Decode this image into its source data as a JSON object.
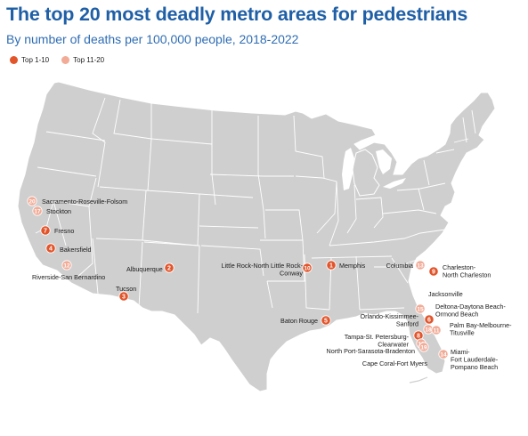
{
  "title": "The top 20 most deadly metro areas for pedestrians",
  "subtitle": "By number of deaths per 100,000 people, 2018-2022",
  "legend": {
    "top10_label": "Top 1-10",
    "top20_label": "Top 11-20"
  },
  "colors": {
    "title": "#1f5fa6",
    "land": "#cfcfcf",
    "border": "#ffffff",
    "top10": "#e2552b",
    "top20": "#f2ab97"
  },
  "metros": [
    {
      "rank": "20",
      "tier": "top20",
      "label": [
        "Sacramento-Roseville-Folsom"
      ]
    },
    {
      "rank": "17",
      "tier": "top20",
      "label": [
        "Stockton"
      ]
    },
    {
      "rank": "7",
      "tier": "top10",
      "label": [
        "Fresno"
      ]
    },
    {
      "rank": "4",
      "tier": "top10",
      "label": [
        "Bakersfield"
      ]
    },
    {
      "rank": "12",
      "tier": "top20",
      "label": [
        "Riverside-San Bernardino"
      ]
    },
    {
      "rank": "3",
      "tier": "top10",
      "label": [
        "Tucson"
      ]
    },
    {
      "rank": "2",
      "tier": "top10",
      "label": [
        "Albuquerque"
      ]
    },
    {
      "rank": "10",
      "tier": "top10",
      "label": [
        "Little Rock-North Little Rock-",
        "Conway"
      ]
    },
    {
      "rank": "1",
      "tier": "top10",
      "label": [
        "Memphis"
      ]
    },
    {
      "rank": "5",
      "tier": "top10",
      "label": [
        "Baton Rouge"
      ]
    },
    {
      "rank": "13",
      "tier": "top20",
      "label": [
        "Columbia"
      ]
    },
    {
      "rank": "9",
      "tier": "top10",
      "label": [
        "Charleston-",
        "North Charleston"
      ]
    },
    {
      "rank": "15",
      "tier": "top20",
      "label": [
        "Jacksonville"
      ]
    },
    {
      "rank": "18",
      "tier": "top20",
      "label": [
        "Deltona-Daytona Beach-",
        "Ormond Beach"
      ]
    },
    {
      "rank": "6",
      "tier": "top10",
      "label": [
        "Orlando-Kissimmee-",
        "Sanford"
      ]
    },
    {
      "rank": "11",
      "tier": "top20",
      "label": [
        "Palm Bay-Melbourne-",
        "Titusville"
      ]
    },
    {
      "rank": "8",
      "tier": "top10",
      "label": [
        "Tampa-St. Petersburg-",
        "Clearwater"
      ]
    },
    {
      "rank": "16",
      "tier": "top20",
      "label": [
        "North Port-Sarasota-Bradenton"
      ]
    },
    {
      "rank": "19",
      "tier": "top20",
      "label": [
        "Cape Coral-Fort Myers"
      ]
    },
    {
      "rank": "14",
      "tier": "top20",
      "label": [
        "Miami-",
        "Fort Lauderdale-",
        "Pompano Beach"
      ]
    }
  ]
}
